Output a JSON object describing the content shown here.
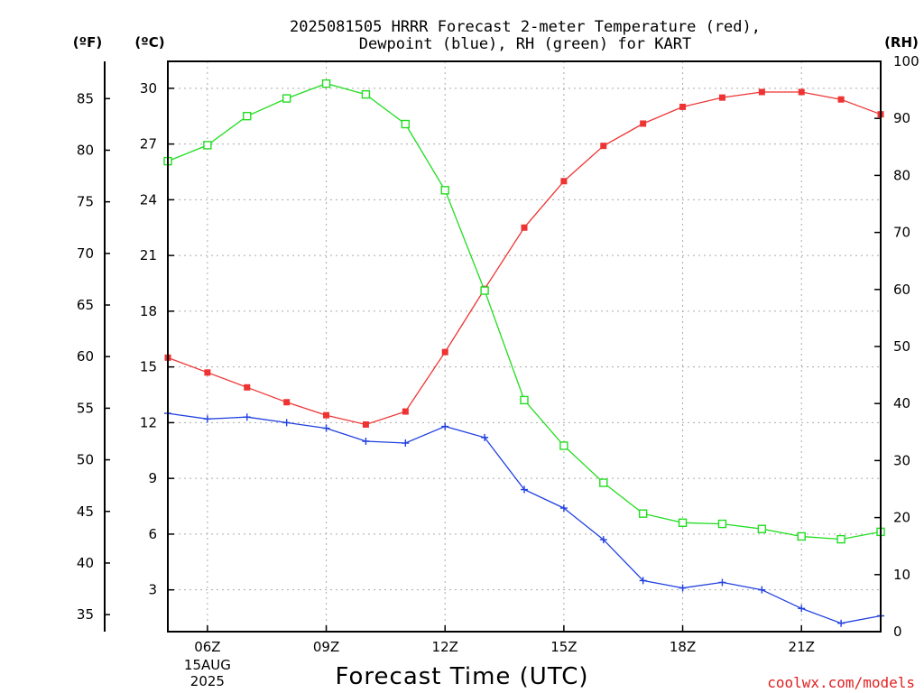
{
  "chart_data": {
    "type": "line",
    "title_lines": [
      "2025081505 HRRR Forecast 2-meter Temperature (red),",
      "Dewpoint (blue), RH (green) for KART"
    ],
    "xlabel": "Forecast Time (UTC)",
    "credit": "coolwx.com/models",
    "units": {
      "fahrenheit": "(ºF)",
      "celsius": "(ºC)",
      "rh": "(RH)"
    },
    "x_hours": [
      5,
      6,
      7,
      8,
      9,
      10,
      11,
      12,
      13,
      14,
      15,
      16,
      17,
      18,
      19,
      20,
      21,
      22,
      23
    ],
    "x_range": [
      5,
      23
    ],
    "x_ticks": [
      {
        "hour": 6,
        "label": "06Z",
        "sub": [
          "15AUG",
          "2025"
        ]
      },
      {
        "hour": 9,
        "label": "09Z"
      },
      {
        "hour": 12,
        "label": "12Z"
      },
      {
        "hour": 15,
        "label": "15Z"
      },
      {
        "hour": 18,
        "label": "18Z"
      },
      {
        "hour": 21,
        "label": "21Z"
      }
    ],
    "y_celsius": {
      "range": [
        0.75,
        31.45
      ],
      "ticks": [
        "3",
        "6",
        "9",
        "12",
        "15",
        "18",
        "21",
        "24",
        "27",
        "30"
      ]
    },
    "y_fahrenheit": {
      "ticks": [
        "35",
        "40",
        "45",
        "50",
        "55",
        "60",
        "65",
        "70",
        "75",
        "80",
        "85"
      ]
    },
    "y_rh": {
      "range": [
        0,
        100
      ],
      "ticks": [
        "0",
        "10",
        "20",
        "30",
        "40",
        "50",
        "60",
        "70",
        "80",
        "90",
        "100"
      ]
    },
    "grid": true,
    "series": [
      {
        "name": "Temperature",
        "axis": "celsius",
        "color": "#ee3333",
        "marker": "filled-square",
        "values": [
          15.5,
          14.7,
          13.9,
          13.1,
          12.4,
          11.9,
          12.6,
          15.8,
          19.2,
          22.5,
          25.0,
          26.9,
          28.1,
          29.0,
          29.5,
          29.8,
          29.8,
          29.4,
          28.6
        ]
      },
      {
        "name": "Dewpoint",
        "axis": "celsius",
        "color": "#2040e0",
        "marker": "plus",
        "values": [
          12.5,
          12.2,
          12.3,
          12.0,
          11.7,
          11.0,
          10.9,
          11.8,
          11.2,
          8.4,
          7.4,
          5.7,
          3.5,
          3.1,
          3.4,
          3.0,
          2.0,
          1.2,
          1.6
        ]
      },
      {
        "name": "RH",
        "axis": "rh",
        "color": "#22dd22",
        "marker": "open-square",
        "values": [
          82.5,
          85.3,
          90.4,
          93.5,
          96.1,
          94.2,
          89.0,
          77.4,
          59.8,
          40.6,
          32.6,
          26.1,
          20.7,
          19.1,
          18.9,
          18.0,
          16.7,
          16.2,
          17.5
        ]
      }
    ]
  }
}
